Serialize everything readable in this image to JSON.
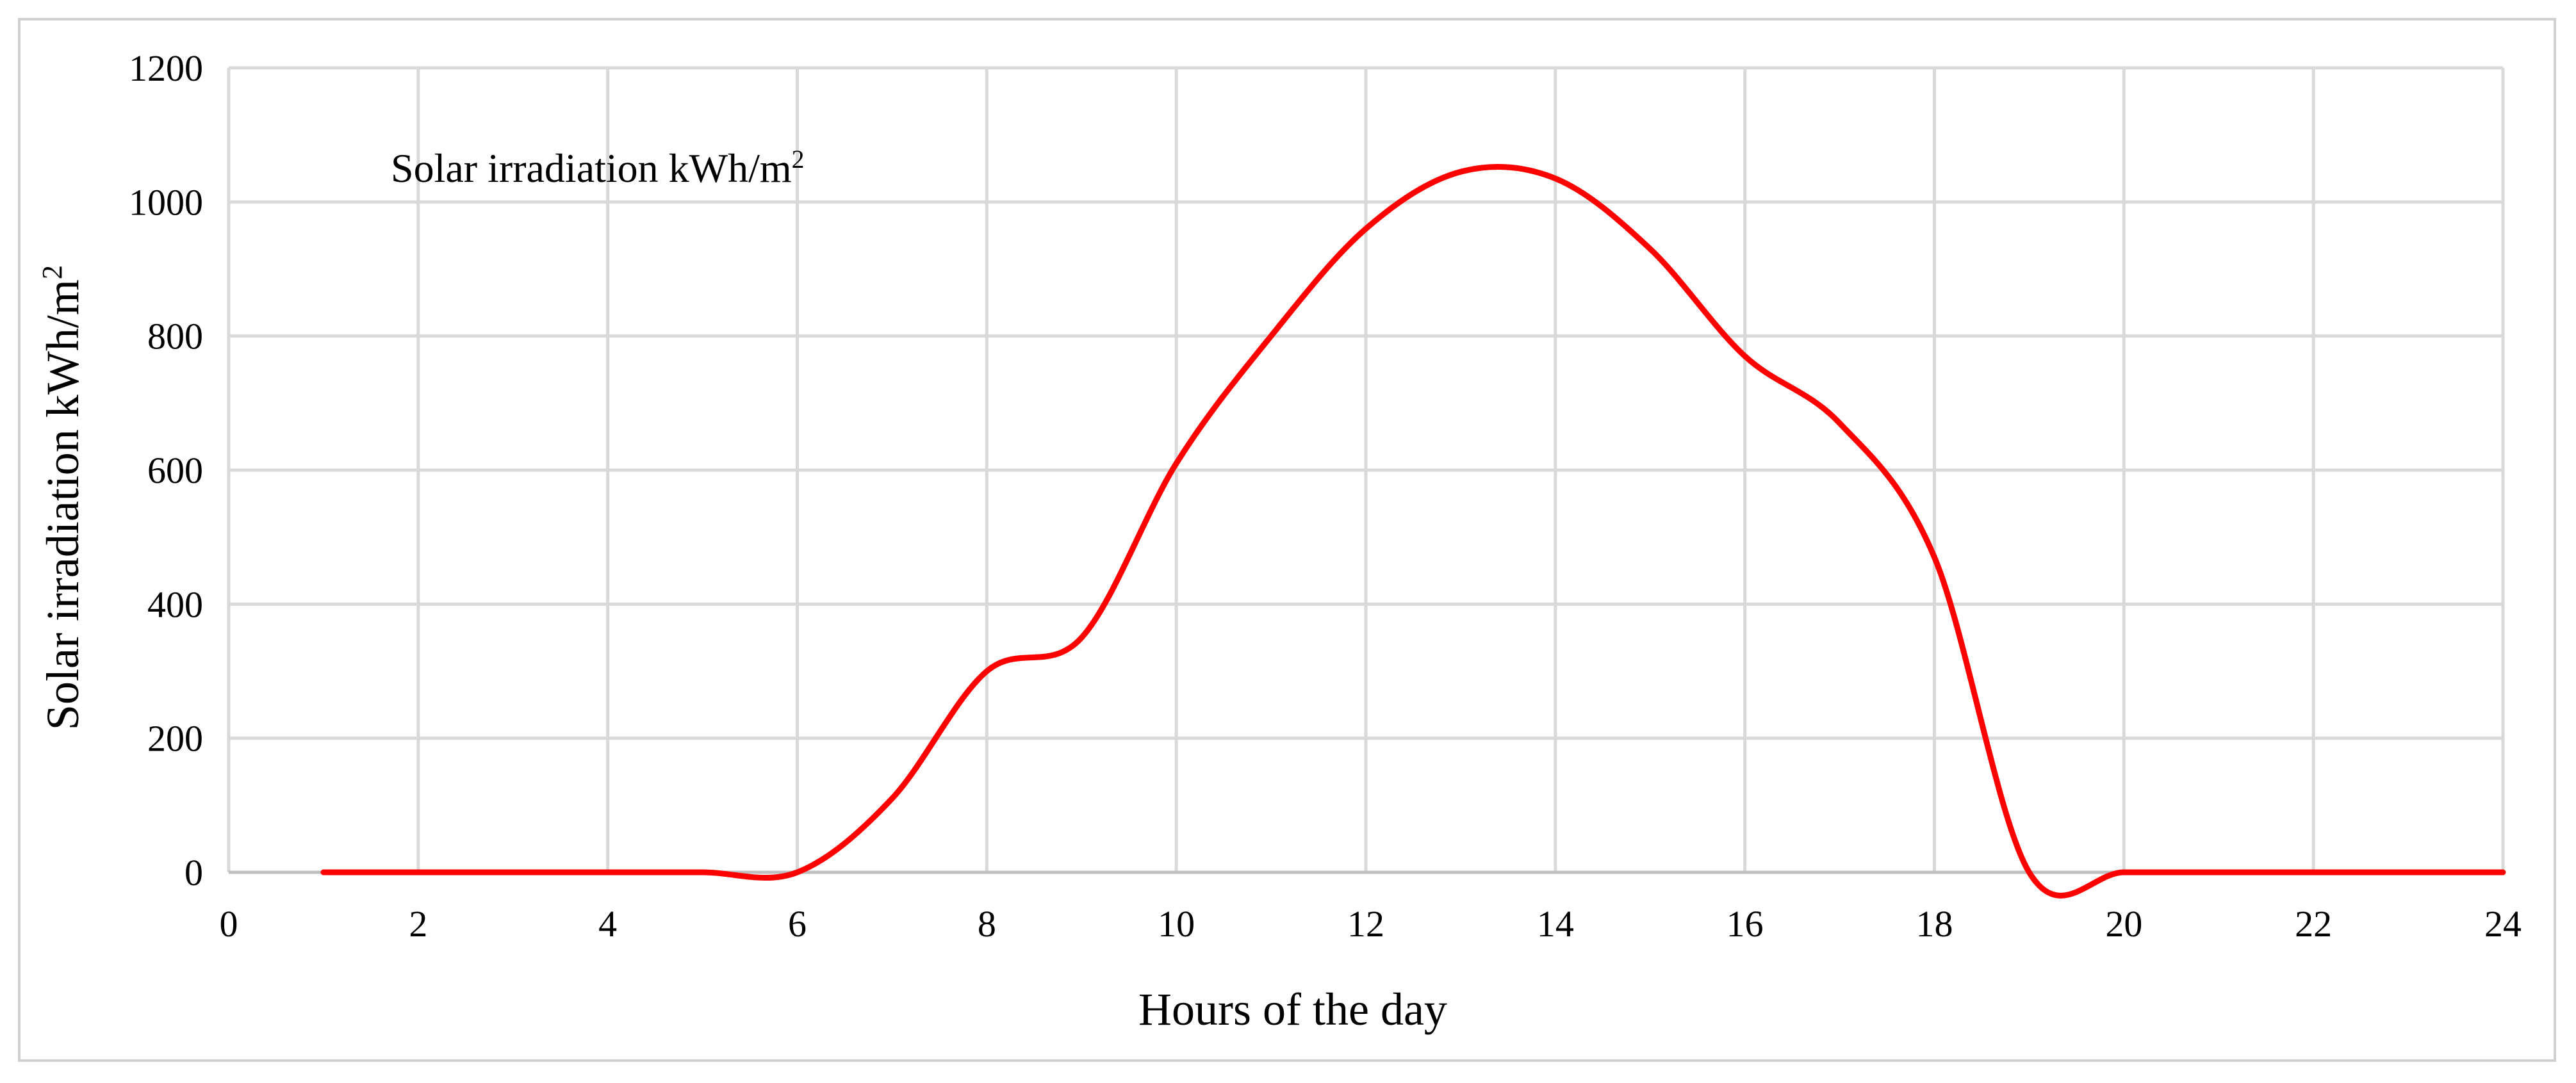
{
  "chart_data": {
    "type": "line",
    "title": "",
    "xlabel": "Hours of the day",
    "ylabel": {
      "text": "Solar irradiation kWh/m",
      "sup": "2"
    },
    "xlim": [
      0,
      24
    ],
    "ylim": [
      0,
      1200
    ],
    "x_ticks": [
      0,
      2,
      4,
      6,
      8,
      10,
      12,
      14,
      16,
      18,
      20,
      22,
      24
    ],
    "y_ticks": [
      0,
      200,
      400,
      600,
      800,
      1000,
      1200
    ],
    "grid": true,
    "legend": {
      "position": "top-left",
      "text": "Solar irradiation kWh/m",
      "sup": "2"
    },
    "series": [
      {
        "name": "Solar irradiation kWh/m²",
        "color": "#ff0000",
        "x": [
          1,
          2,
          3,
          4,
          5,
          6,
          7,
          8,
          9,
          10,
          11,
          12,
          13,
          14,
          15,
          16,
          17,
          18,
          19,
          20,
          21,
          22,
          23,
          24
        ],
        "y": [
          0,
          0,
          0,
          0,
          0,
          0,
          110,
          300,
          350,
          610,
          800,
          960,
          1045,
          1035,
          930,
          770,
          670,
          470,
          0,
          0,
          0,
          0,
          0,
          0
        ]
      }
    ]
  }
}
